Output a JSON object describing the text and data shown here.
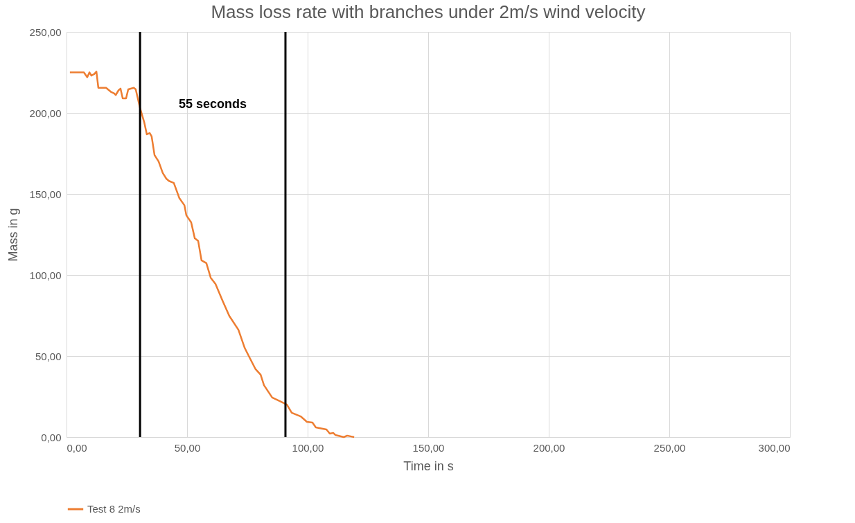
{
  "chart_data": {
    "type": "line",
    "title": "Mass loss rate with branches under 2m/s wind velocity",
    "xlabel": "Time in s",
    "ylabel": "Mass in g",
    "xlim": [
      0,
      300
    ],
    "ylim": [
      0,
      250
    ],
    "xticks": [
      {
        "value": 0,
        "label": "0,00"
      },
      {
        "value": 50,
        "label": "50,00"
      },
      {
        "value": 100,
        "label": "100,00"
      },
      {
        "value": 150,
        "label": "150,00"
      },
      {
        "value": 200,
        "label": "200,00"
      },
      {
        "value": 250,
        "label": "250,00"
      },
      {
        "value": 300,
        "label": "300,00"
      }
    ],
    "yticks": [
      {
        "value": 0,
        "label": "0,00"
      },
      {
        "value": 50,
        "label": "50,00"
      },
      {
        "value": 100,
        "label": "100,00"
      },
      {
        "value": 150,
        "label": "150,00"
      },
      {
        "value": 200,
        "label": "200,00"
      },
      {
        "value": 250,
        "label": "250,00"
      }
    ],
    "grid": true,
    "legend": "bottom",
    "marker": "none",
    "line_style": "solid",
    "series": [
      {
        "name": "Test 8 2m/s",
        "color": "#ed7d31",
        "x": [
          1.4,
          7.2,
          8.6,
          9.5,
          10.3,
          11.5,
          12.4,
          13.2,
          16.4,
          18.4,
          19.8,
          20.4,
          21.6,
          22.4,
          23.3,
          24.7,
          25.6,
          27.9,
          28.7,
          30.5,
          32.2,
          33.3,
          34.5,
          35.3,
          36.5,
          38.2,
          39.9,
          41.4,
          42.5,
          44.5,
          46.8,
          48.9,
          49.7,
          51.7,
          53.2,
          54.6,
          56,
          58,
          59.8,
          61.8,
          64.7,
          67.5,
          71.3,
          73.9,
          75.6,
          78.4,
          80.5,
          81.9,
          85.3,
          88.5,
          91.4,
          93.4,
          97.1,
          99.7,
          102,
          103.4,
          107.8,
          109.2,
          110.6,
          111.5,
          115,
          116.4,
          119.3
        ],
        "values": [
          225,
          225,
          222,
          225,
          223,
          224,
          225.5,
          215.5,
          215.5,
          213,
          212,
          211,
          214,
          215,
          209,
          209,
          214.5,
          215.5,
          214.5,
          203,
          194.4,
          186.8,
          187.6,
          185.5,
          174,
          170,
          163,
          159.4,
          158,
          156.8,
          147.4,
          143,
          136.8,
          132.5,
          122.6,
          121,
          109,
          107.3,
          98.3,
          94.4,
          84.2,
          74.8,
          66.2,
          55,
          50,
          41.9,
          38.5,
          32,
          24.4,
          22.2,
          20,
          15,
          12.8,
          9.4,
          9,
          6,
          4.7,
          2.1,
          2.6,
          1.3,
          0,
          0.9,
          0
        ]
      }
    ],
    "ref_lines": [
      {
        "axis": "x",
        "value": 30.5,
        "color": "#000000"
      },
      {
        "axis": "x",
        "value": 90.8,
        "color": "#000000"
      }
    ],
    "annotations": [
      "55 seconds"
    ]
  }
}
